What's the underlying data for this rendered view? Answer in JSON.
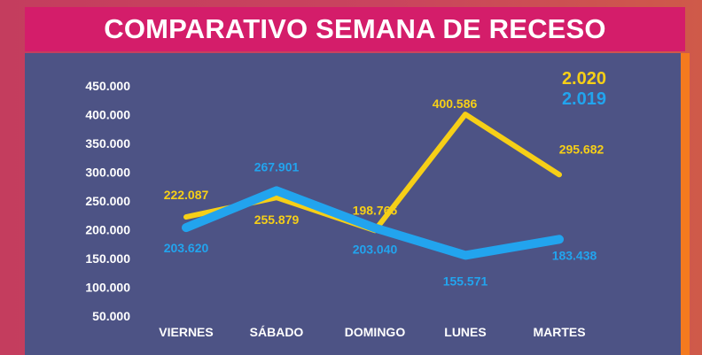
{
  "header": {
    "title": "COMPARATIVO SEMANA DE RECESO"
  },
  "colors": {
    "series_2020": "#f6cf17",
    "series_2019": "#22a4ee",
    "panel": "#4d5385",
    "title_bar": "#d41d6a",
    "accent": "#f47a1f"
  },
  "chart_data": {
    "type": "line",
    "categories": [
      "VIERNES",
      "SÁBADO",
      "DOMINGO",
      "LUNES",
      "MARTES"
    ],
    "series": [
      {
        "name": "2.020",
        "values": [
          222087,
          255879,
          198766,
          400586,
          295682
        ],
        "labels": [
          "222.087",
          "255.879",
          "198.766",
          "400.586",
          "295.682"
        ]
      },
      {
        "name": "2.019",
        "values": [
          203620,
          267901,
          203040,
          155571,
          183438
        ],
        "labels": [
          "203.620",
          "267.901",
          "203.040",
          "155.571",
          "183.438"
        ]
      }
    ],
    "y_ticks": [
      "450.000",
      "400.000",
      "350.000",
      "300.000",
      "250.000",
      "200.000",
      "150.000",
      "100.000",
      "50.000"
    ],
    "title": "COMPARATIVO SEMANA DE RECESO",
    "xlabel": "",
    "ylabel": "",
    "ylim": [
      50000,
      450000
    ],
    "grid": false,
    "legend_position": "top-right"
  }
}
